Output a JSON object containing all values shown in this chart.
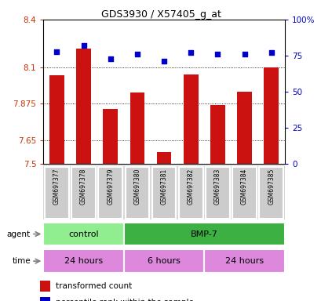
{
  "title": "GDS3930 / X57405_g_at",
  "samples": [
    "GSM697377",
    "GSM697378",
    "GSM697379",
    "GSM697380",
    "GSM697381",
    "GSM697382",
    "GSM697383",
    "GSM697384",
    "GSM697385"
  ],
  "red_values": [
    8.055,
    8.22,
    7.845,
    7.945,
    7.575,
    8.06,
    7.87,
    7.95,
    8.1
  ],
  "blue_values": [
    78,
    82,
    73,
    76,
    71,
    77,
    76,
    76,
    77
  ],
  "ylim_left": [
    7.5,
    8.4
  ],
  "ylim_right": [
    0,
    100
  ],
  "yticks_left": [
    7.5,
    7.65,
    7.875,
    8.1,
    8.4
  ],
  "yticks_right": [
    0,
    25,
    50,
    75,
    100
  ],
  "ytick_labels_left": [
    "7.5",
    "7.65",
    "7.875",
    "8.1",
    "8.4"
  ],
  "ytick_labels_right": [
    "0",
    "25",
    "50",
    "75",
    "100%"
  ],
  "agent_groups": [
    {
      "label": "control",
      "start": 0,
      "end": 3,
      "color": "#90ee90"
    },
    {
      "label": "BMP-7",
      "start": 3,
      "end": 9,
      "color": "#3cb043"
    }
  ],
  "time_groups": [
    {
      "label": "24 hours",
      "start": 0,
      "end": 3,
      "color": "#da70d6"
    },
    {
      "label": "6 hours",
      "start": 3,
      "end": 6,
      "color": "#da70d6"
    },
    {
      "label": "24 hours",
      "start": 6,
      "end": 9,
      "color": "#da70d6"
    }
  ],
  "bar_color": "#cc1111",
  "dot_color": "#0000cc",
  "grid_color": "black",
  "bg_plot": "#f0f0f0",
  "left_axis_color": "#cc3300",
  "right_axis_color": "#0000cc"
}
